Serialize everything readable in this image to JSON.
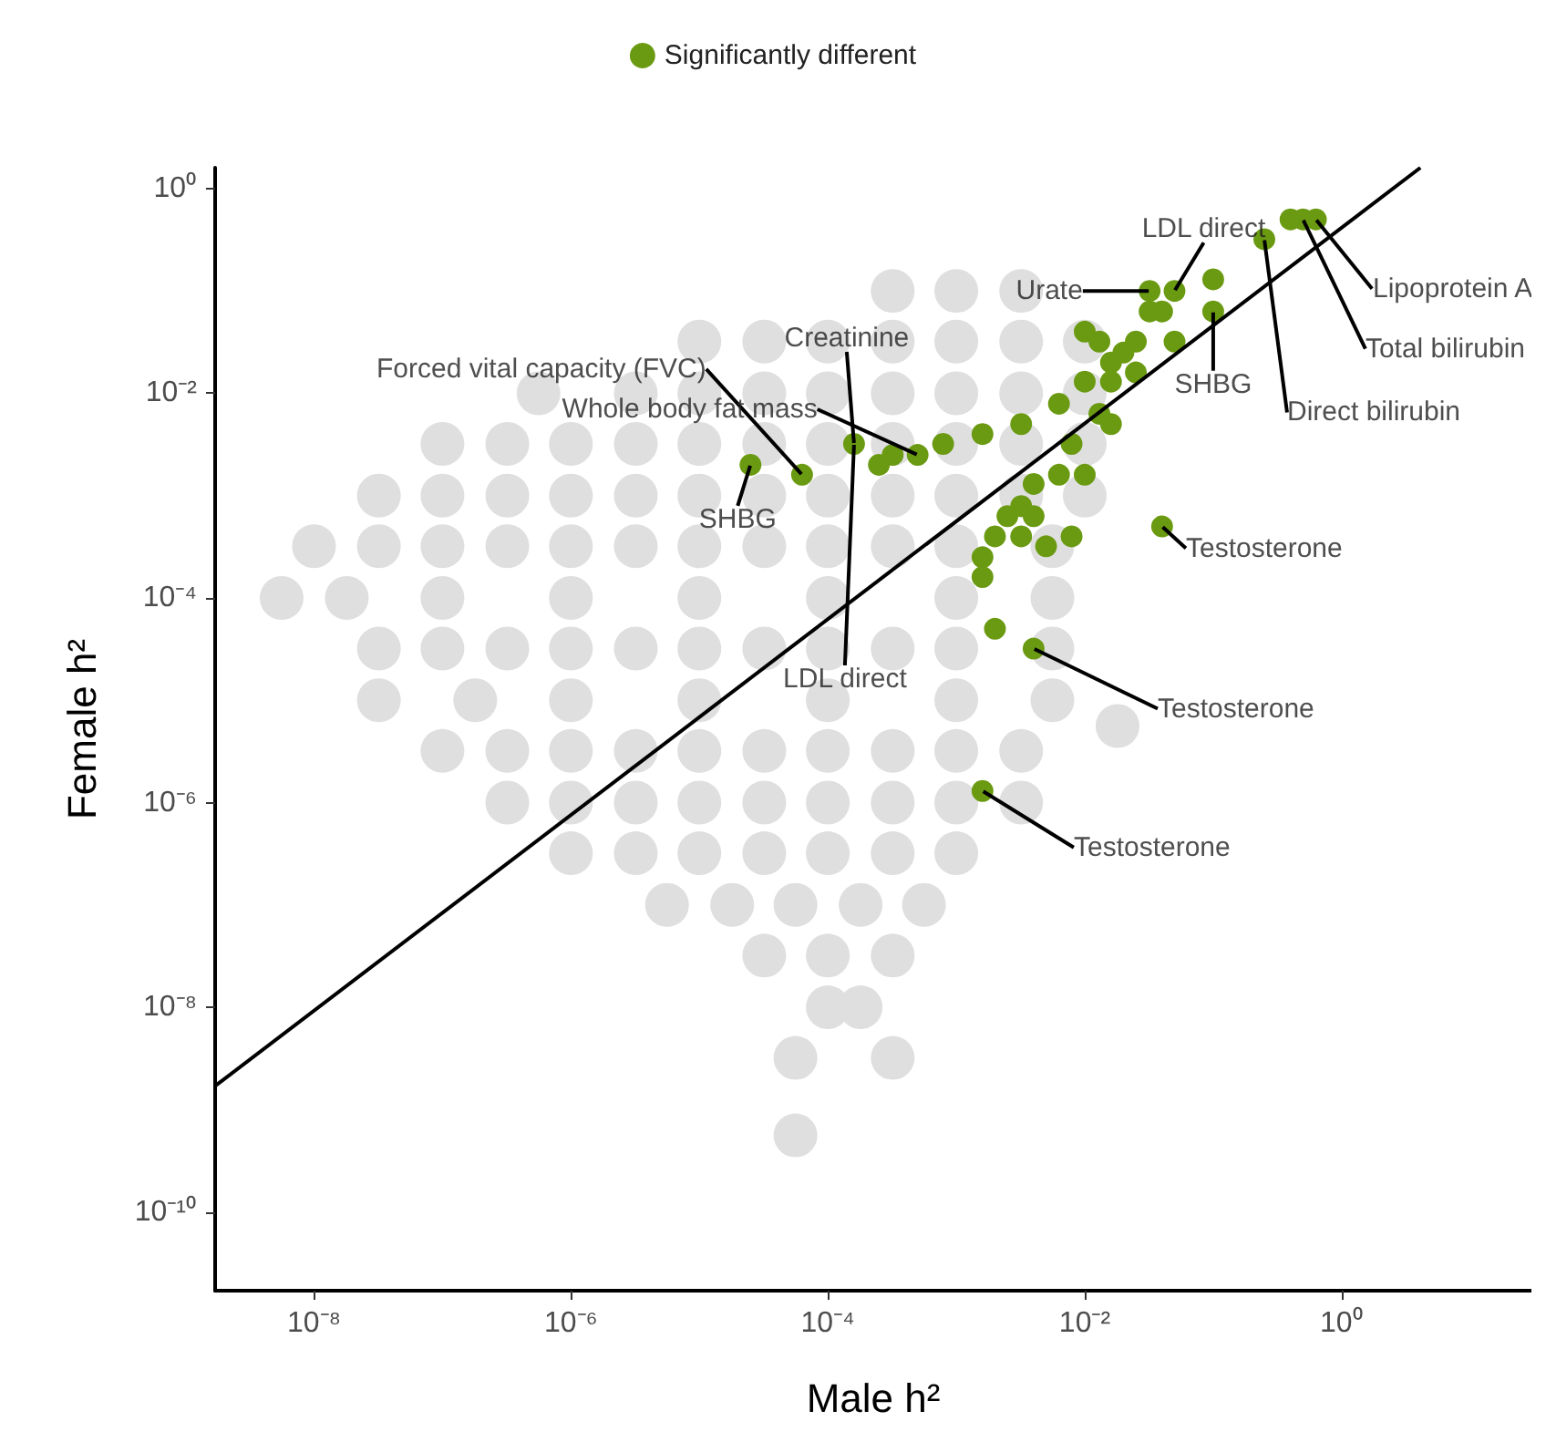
{
  "chart_data": {
    "type": "scatter",
    "xlabel": "Male h²",
    "ylabel": "Female h²",
    "xlim": [
      1.7e-09,
      30
    ],
    "ylim": [
      1.7e-11,
      1.6
    ],
    "log": "xy",
    "grid": false,
    "legend": "top",
    "marker": "circle",
    "xticks": [
      {
        "value": 1e-08,
        "label": "10⁻⁸"
      },
      {
        "value": 1e-06,
        "label": "10⁻⁶"
      },
      {
        "value": 0.0001,
        "label": "10⁻⁴"
      },
      {
        "value": 0.01,
        "label": "10⁻²"
      },
      {
        "value": 1,
        "label": "10⁰"
      }
    ],
    "yticks": [
      {
        "value": 1e-10,
        "label": "10⁻¹⁰"
      },
      {
        "value": 1e-08,
        "label": "10⁻⁸"
      },
      {
        "value": 1e-06,
        "label": "10⁻⁶"
      },
      {
        "value": 0.0001,
        "label": "10⁻⁴"
      },
      {
        "value": 0.01,
        "label": "10⁻²"
      },
      {
        "value": 1,
        "label": "10⁰"
      }
    ],
    "series": [
      {
        "color": "#e0dfe0",
        "x": [
          0.00032,
          0.001,
          0.0032,
          1e-05,
          3.2e-05,
          0.0001,
          0.00032,
          0.001,
          0.0032,
          0.01,
          5.6e-07,
          3.2e-06,
          1e-05,
          3.2e-05,
          0.0001,
          0.00032,
          0.001,
          0.0032,
          0.01,
          1e-07,
          3.2e-07,
          1e-06,
          3.2e-06,
          1e-05,
          3.2e-05,
          0.0001,
          0.00032,
          0.001,
          0.0032,
          0.01,
          3.2e-08,
          1e-07,
          3.2e-07,
          1e-06,
          3.2e-06,
          1e-05,
          3.2e-05,
          0.0001,
          0.00032,
          0.001,
          0.0032,
          0.01,
          1e-08,
          3.2e-08,
          1e-07,
          3.2e-07,
          1e-06,
          3.2e-06,
          1e-05,
          3.2e-05,
          0.0001,
          0.00032,
          0.001,
          0.0056,
          5.6e-09,
          1.8e-08,
          1e-07,
          1e-06,
          1e-05,
          0.0001,
          0.001,
          0.0056,
          3.2e-08,
          1e-07,
          3.2e-07,
          1e-06,
          3.2e-06,
          1e-05,
          3.2e-05,
          0.0001,
          0.00032,
          0.001,
          0.0056,
          3.2e-08,
          1.8e-07,
          1e-06,
          1e-05,
          0.0001,
          0.001,
          0.0056,
          0.018,
          1e-07,
          3.2e-07,
          1e-06,
          3.2e-06,
          1e-05,
          3.2e-05,
          0.0001,
          0.00032,
          0.001,
          0.0032,
          3.2e-07,
          1e-06,
          3.2e-06,
          1e-05,
          3.2e-05,
          0.0001,
          0.00032,
          0.001,
          0.0032,
          1e-06,
          3.2e-06,
          1e-05,
          3.2e-05,
          0.0001,
          0.00032,
          0.001,
          5.6e-06,
          1.8e-05,
          5.6e-05,
          0.00018,
          0.00056,
          3.2e-05,
          0.0001,
          0.00032,
          0.0001,
          0.00018,
          5.6e-05,
          0.00032,
          5.6e-05
        ],
        "values": [
          0.1,
          0.1,
          0.1,
          0.032,
          0.032,
          0.032,
          0.032,
          0.032,
          0.032,
          0.032,
          0.01,
          0.01,
          0.01,
          0.01,
          0.01,
          0.01,
          0.01,
          0.01,
          0.01,
          0.0032,
          0.0032,
          0.0032,
          0.0032,
          0.0032,
          0.0032,
          0.0032,
          0.0032,
          0.0032,
          0.0032,
          0.0032,
          0.001,
          0.001,
          0.001,
          0.001,
          0.001,
          0.001,
          0.001,
          0.001,
          0.001,
          0.001,
          0.001,
          0.001,
          0.00032,
          0.00032,
          0.00032,
          0.00032,
          0.00032,
          0.00032,
          0.00032,
          0.00032,
          0.00032,
          0.00032,
          0.00032,
          0.00032,
          0.0001,
          0.0001,
          0.0001,
          0.0001,
          0.0001,
          0.0001,
          0.0001,
          0.0001,
          3.2e-05,
          3.2e-05,
          3.2e-05,
          3.2e-05,
          3.2e-05,
          3.2e-05,
          3.2e-05,
          3.2e-05,
          3.2e-05,
          3.2e-05,
          3.2e-05,
          1e-05,
          1e-05,
          1e-05,
          1e-05,
          1e-05,
          1e-05,
          1e-05,
          5.6e-06,
          3.2e-06,
          3.2e-06,
          3.2e-06,
          3.2e-06,
          3.2e-06,
          3.2e-06,
          3.2e-06,
          3.2e-06,
          3.2e-06,
          3.2e-06,
          1e-06,
          1e-06,
          1e-06,
          1e-06,
          1e-06,
          1e-06,
          1e-06,
          1e-06,
          1e-06,
          3.2e-07,
          3.2e-07,
          3.2e-07,
          3.2e-07,
          3.2e-07,
          3.2e-07,
          3.2e-07,
          1e-07,
          1e-07,
          1e-07,
          1e-07,
          1e-07,
          3.2e-08,
          3.2e-08,
          3.2e-08,
          1e-08,
          1e-08,
          3.2e-09,
          3.2e-09,
          5.6e-10
        ]
      },
      {
        "name": "Significantly different",
        "color": "#6a9a11",
        "x": [
          0.25,
          0.4,
          0.5,
          0.63,
          0.05,
          0.032,
          0.1,
          0.1,
          0.032,
          0.04,
          0.05,
          0.025,
          0.025,
          0.016,
          0.04,
          0.0079,
          0.00016,
          0.00032,
          0.0005,
          0.00079,
          0.0016,
          0.0032,
          0.0063,
          0.01,
          0.016,
          0.02,
          0.00025,
          0.016,
          0.013,
          0.0079,
          0.0063,
          0.004,
          0.0032,
          0.0025,
          0.002,
          0.0016,
          0.0016,
          0.0032,
          0.005,
          0.004,
          0.01,
          0.002,
          0.004,
          0.0016,
          2.5e-05,
          6.3e-05,
          0.01,
          0.013
        ],
        "values": [
          0.32,
          0.5,
          0.5,
          0.5,
          0.1,
          0.1,
          0.13,
          0.063,
          0.063,
          0.063,
          0.032,
          0.032,
          0.016,
          0.005,
          0.0005,
          0.0004,
          0.0032,
          0.0025,
          0.0025,
          0.0032,
          0.004,
          0.005,
          0.0079,
          0.013,
          0.02,
          0.025,
          0.002,
          0.013,
          0.0063,
          0.0032,
          0.0016,
          0.0013,
          0.00079,
          0.00063,
          0.0004,
          0.00025,
          0.00016,
          0.0004,
          0.00032,
          0.00063,
          0.0016,
          5e-05,
          3.2e-05,
          1.3e-06,
          0.002,
          0.0016,
          0.04,
          0.032
        ]
      },
      {
        "type": "line",
        "marker": "none",
        "color": "#000000",
        "x": [
          1.7e-09,
          4.1
        ],
        "values": [
          1.7e-09,
          1.6
        ]
      }
    ],
    "annotations": [
      {
        "text": "LDL direct",
        "x": 0.05,
        "y": 0.1
      },
      {
        "text": "Urate",
        "x": 0.032,
        "y": 0.1
      },
      {
        "text": "Lipoprotein A",
        "x": 0.63,
        "y": 0.5
      },
      {
        "text": "Total bilirubin",
        "x": 0.5,
        "y": 0.5
      },
      {
        "text": "Direct bilirubin",
        "x": 0.25,
        "y": 0.32
      },
      {
        "text": "SHBG",
        "x": 0.1,
        "y": 0.063
      },
      {
        "text": "Testosterone",
        "x": 0.04,
        "y": 0.0005
      },
      {
        "text": "Testosterone",
        "x": 0.004,
        "y": 3.2e-05
      },
      {
        "text": "Testosterone",
        "x": 0.0016,
        "y": 1.3e-06
      },
      {
        "text": "Forced vital capacity (FVC)",
        "x": 6.3e-05,
        "y": 0.0016
      },
      {
        "text": "Creatinine",
        "x": 0.00016,
        "y": 0.0032
      },
      {
        "text": "Whole body fat mass",
        "x": 0.0005,
        "y": 0.0025
      },
      {
        "text": "SHBG",
        "x": 2.5e-05,
        "y": 0.002
      },
      {
        "text": "LDL direct",
        "x": 0.00016,
        "y": 0.0032
      }
    ]
  }
}
